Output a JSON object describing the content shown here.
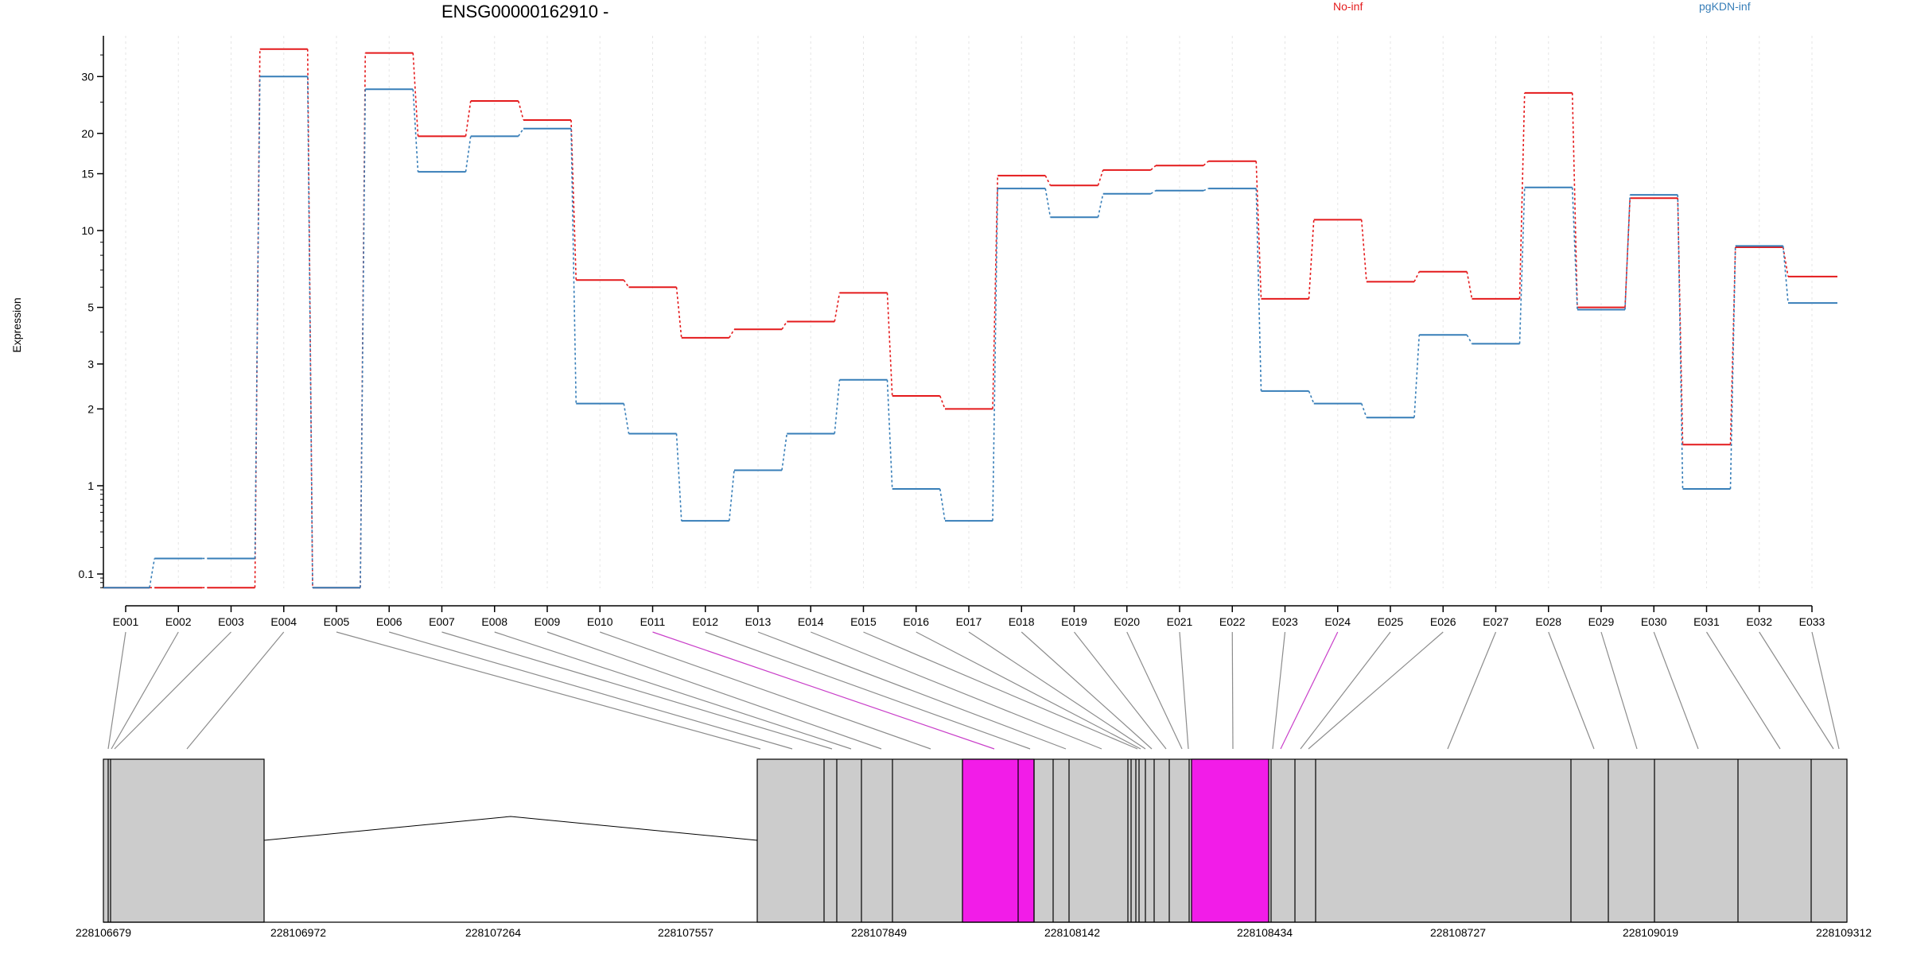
{
  "chart_data": {
    "type": "line",
    "title": "ENSG00000162910 -",
    "xlabel": "",
    "ylabel": "Expression",
    "y_scale": "log",
    "y_ticks": [
      0.1,
      1,
      2,
      3,
      5,
      10,
      15,
      20,
      30
    ],
    "legend_placement": "top",
    "grid": "vertical dotted lines at each exon",
    "categories": [
      "E001",
      "E002",
      "E003",
      "E004",
      "E005",
      "E006",
      "E007",
      "E008",
      "E009",
      "E010",
      "E011",
      "E012",
      "E013",
      "E014",
      "E015",
      "E016",
      "E017",
      "E018",
      "E019",
      "E020",
      "E021",
      "E022",
      "E023",
      "E024",
      "E025",
      "E026",
      "E027",
      "E028",
      "E029",
      "E030",
      "E031",
      "E032",
      "E033"
    ],
    "series": [
      {
        "name": "No-inf",
        "color": "#e41a1c",
        "values": [
          0.07,
          0.07,
          0.07,
          36.5,
          0.07,
          35.5,
          19.6,
          25.2,
          22.0,
          6.4,
          6.0,
          3.8,
          4.1,
          4.4,
          5.7,
          2.25,
          2.0,
          14.8,
          13.8,
          15.4,
          15.9,
          16.4,
          5.4,
          10.8,
          6.3,
          6.9,
          5.4,
          26.7,
          5.0,
          12.6,
          1.45,
          8.6,
          6.6
        ]
      },
      {
        "name": "pgKDN-inf",
        "color": "#377eb8",
        "values": [
          0.07,
          0.15,
          0.15,
          30.0,
          0.07,
          27.4,
          15.2,
          19.6,
          20.7,
          2.1,
          1.6,
          0.4,
          1.15,
          1.6,
          2.6,
          0.92,
          0.4,
          13.5,
          11.0,
          13.0,
          13.3,
          13.5,
          2.35,
          2.1,
          1.85,
          3.9,
          3.6,
          13.6,
          4.9,
          12.9,
          0.92,
          8.7,
          5.2
        ]
      }
    ],
    "gene_model": {
      "coordinates": [
        "228106679",
        "228106972",
        "228107264",
        "228107557",
        "228107849",
        "228108142",
        "228108434",
        "228108727",
        "228109019",
        "228109312"
      ],
      "highlighted_exons": [
        "E011",
        "E024"
      ],
      "highlight_color": "#f21ce8",
      "exon_color": "#cccccc"
    }
  }
}
